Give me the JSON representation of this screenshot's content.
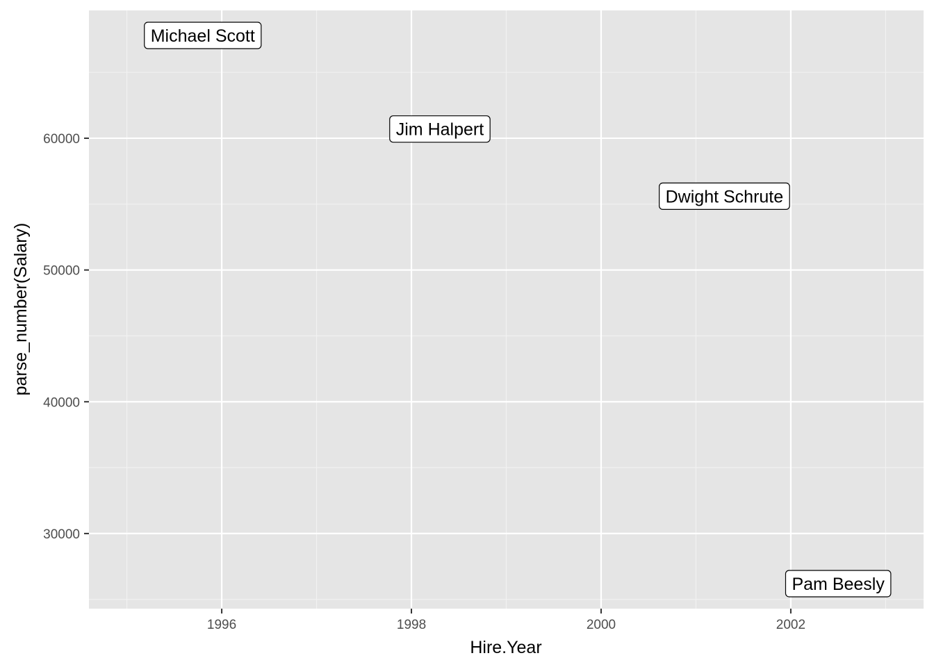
{
  "chart_data": {
    "type": "scatter",
    "geom": "label",
    "title": "",
    "xlabel": "Hire.Year",
    "ylabel": "parse_number(Salary)",
    "xlim": [
      1994.6,
      2003.4
    ],
    "ylim": [
      24300,
      69700
    ],
    "x_ticks": [
      1996,
      1998,
      2000,
      2002
    ],
    "x_minor": [
      1995,
      1997,
      1999,
      2001,
      2003
    ],
    "y_ticks": [
      30000,
      40000,
      50000,
      60000
    ],
    "y_minor": [
      25000,
      35000,
      45000,
      55000,
      65000
    ],
    "points": [
      {
        "label": "Michael Scott",
        "x": 1995.8,
        "y": 67800
      },
      {
        "label": "Jim Halpert",
        "x": 1998.3,
        "y": 60700
      },
      {
        "label": "Dwight Schrute",
        "x": 2001.3,
        "y": 55600
      },
      {
        "label": "Pam Beesly",
        "x": 2002.5,
        "y": 26200
      }
    ],
    "grid": true,
    "colors": {
      "panel_background": "#e5e5e5",
      "grid_major": "#ffffff",
      "grid_minor": "#f2f2f2",
      "label_fill": "#ffffff",
      "label_border": "#000000",
      "tick_text": "#4d4d4d",
      "axis_title": "#000000"
    }
  }
}
